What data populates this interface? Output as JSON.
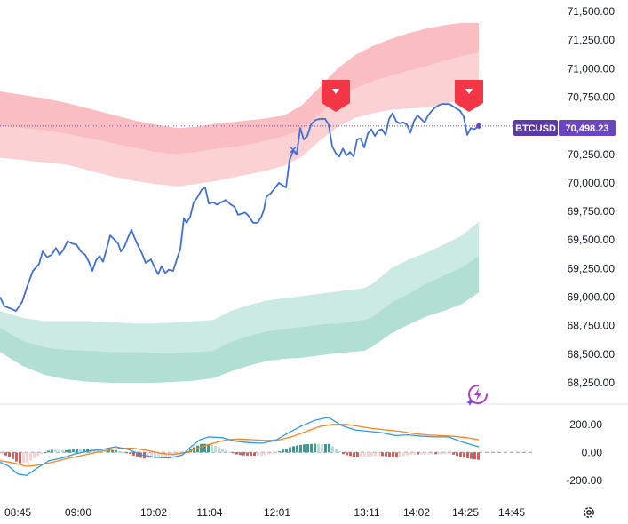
{
  "chart_data": {
    "type": "line",
    "symbol": "BTCUSD",
    "last_price": "70,498.23",
    "price_ticks": [
      "71,500.00",
      "71,250.00",
      "71,000.00",
      "70,750.00",
      "70,500.00",
      "70,250.00",
      "70,000.00",
      "69,750.00",
      "69,500.00",
      "69,250.00",
      "69,000.00",
      "68,750.00",
      "68,500.00",
      "68,250.00"
    ],
    "time_ticks": [
      "08:45",
      "09:00",
      "10:02",
      "11:04",
      "12:01",
      "13:11",
      "14:02",
      "14:25",
      "14:45"
    ],
    "ylim": [
      68150,
      71550
    ],
    "price": [
      [
        0,
        69000
      ],
      [
        5,
        68920
      ],
      [
        12,
        68900
      ],
      [
        18,
        68880
      ],
      [
        25,
        68960
      ],
      [
        30,
        69080
      ],
      [
        37,
        69230
      ],
      [
        44,
        69290
      ],
      [
        48,
        69400
      ],
      [
        53,
        69350
      ],
      [
        58,
        69370
      ],
      [
        63,
        69430
      ],
      [
        67,
        69370
      ],
      [
        71,
        69410
      ],
      [
        76,
        69490
      ],
      [
        81,
        69470
      ],
      [
        86,
        69460
      ],
      [
        91,
        69400
      ],
      [
        96,
        69370
      ],
      [
        100,
        69310
      ],
      [
        104,
        69230
      ],
      [
        108,
        69320
      ],
      [
        112,
        69360
      ],
      [
        116,
        69310
      ],
      [
        120,
        69420
      ],
      [
        124,
        69540
      ],
      [
        128,
        69510
      ],
      [
        133,
        69470
      ],
      [
        136,
        69400
      ],
      [
        140,
        69440
      ],
      [
        144,
        69520
      ],
      [
        148,
        69590
      ],
      [
        152,
        69510
      ],
      [
        156,
        69440
      ],
      [
        160,
        69380
      ],
      [
        164,
        69300
      ],
      [
        170,
        69330
      ],
      [
        174,
        69260
      ],
      [
        178,
        69200
      ],
      [
        182,
        69270
      ],
      [
        186,
        69210
      ],
      [
        190,
        69240
      ],
      [
        195,
        69230
      ],
      [
        199,
        69330
      ],
      [
        203,
        69420
      ],
      [
        207,
        69690
      ],
      [
        210,
        69650
      ],
      [
        214,
        69700
      ],
      [
        218,
        69830
      ],
      [
        222,
        69870
      ],
      [
        227,
        69940
      ],
      [
        231,
        69960
      ],
      [
        235,
        69820
      ],
      [
        240,
        69830
      ],
      [
        244,
        69810
      ],
      [
        249,
        69830
      ],
      [
        254,
        69850
      ],
      [
        260,
        69810
      ],
      [
        264,
        69790
      ],
      [
        268,
        69720
      ],
      [
        272,
        69730
      ],
      [
        276,
        69740
      ],
      [
        280,
        69710
      ],
      [
        285,
        69650
      ],
      [
        290,
        69650
      ],
      [
        294,
        69700
      ],
      [
        297,
        69760
      ],
      [
        300,
        69880
      ],
      [
        305,
        69910
      ],
      [
        310,
        69960
      ],
      [
        314,
        70000
      ],
      [
        318,
        69980
      ],
      [
        322,
        69960
      ],
      [
        326,
        70200
      ],
      [
        330,
        70280
      ],
      [
        334,
        70250
      ],
      [
        338,
        70480
      ],
      [
        342,
        70380
      ],
      [
        346,
        70410
      ],
      [
        350,
        70510
      ],
      [
        355,
        70550
      ],
      [
        360,
        70560
      ],
      [
        366,
        70560
      ],
      [
        370,
        70510
      ],
      [
        374,
        70320
      ],
      [
        378,
        70260
      ],
      [
        382,
        70230
      ],
      [
        386,
        70300
      ],
      [
        390,
        70240
      ],
      [
        394,
        70270
      ],
      [
        398,
        70230
      ],
      [
        402,
        70380
      ],
      [
        406,
        70390
      ],
      [
        410,
        70310
      ],
      [
        414,
        70430
      ],
      [
        418,
        70470
      ],
      [
        422,
        70410
      ],
      [
        426,
        70460
      ],
      [
        430,
        70470
      ],
      [
        434,
        70420
      ],
      [
        438,
        70560
      ],
      [
        442,
        70610
      ],
      [
        446,
        70540
      ],
      [
        450,
        70520
      ],
      [
        454,
        70530
      ],
      [
        458,
        70510
      ],
      [
        462,
        70440
      ],
      [
        466,
        70540
      ],
      [
        470,
        70590
      ],
      [
        474,
        70560
      ],
      [
        478,
        70530
      ],
      [
        482,
        70590
      ],
      [
        486,
        70630
      ],
      [
        490,
        70660
      ],
      [
        494,
        70680
      ],
      [
        498,
        70690
      ],
      [
        502,
        70690
      ],
      [
        506,
        70690
      ],
      [
        510,
        70670
      ],
      [
        514,
        70650
      ],
      [
        518,
        70630
      ],
      [
        522,
        70580
      ],
      [
        526,
        70420
      ],
      [
        530,
        70480
      ],
      [
        534,
        70470
      ],
      [
        539,
        70498
      ]
    ],
    "upper_band": {
      "outer": [
        [
          0,
          70800
        ],
        [
          25,
          70770
        ],
        [
          50,
          70740
        ],
        [
          75,
          70700
        ],
        [
          100,
          70650
        ],
        [
          125,
          70600
        ],
        [
          150,
          70550
        ],
        [
          175,
          70510
        ],
        [
          200,
          70480
        ],
        [
          220,
          70490
        ],
        [
          245,
          70520
        ],
        [
          270,
          70540
        ],
        [
          295,
          70560
        ],
        [
          320,
          70590
        ],
        [
          340,
          70680
        ],
        [
          360,
          70840
        ],
        [
          380,
          71000
        ],
        [
          400,
          71120
        ],
        [
          420,
          71200
        ],
        [
          440,
          71260
        ],
        [
          460,
          71310
        ],
        [
          480,
          71350
        ],
        [
          500,
          71380
        ],
        [
          520,
          71400
        ],
        [
          539,
          71400
        ]
      ],
      "middle": [
        [
          0,
          70500
        ],
        [
          25,
          70480
        ],
        [
          50,
          70460
        ],
        [
          75,
          70430
        ],
        [
          100,
          70390
        ],
        [
          125,
          70350
        ],
        [
          150,
          70310
        ],
        [
          175,
          70270
        ],
        [
          200,
          70250
        ],
        [
          220,
          70270
        ],
        [
          245,
          70300
        ],
        [
          270,
          70320
        ],
        [
          295,
          70360
        ],
        [
          320,
          70410
        ],
        [
          340,
          70470
        ],
        [
          360,
          70600
        ],
        [
          380,
          70740
        ],
        [
          400,
          70830
        ],
        [
          420,
          70890
        ],
        [
          440,
          70940
        ],
        [
          460,
          70980
        ],
        [
          480,
          71020
        ],
        [
          500,
          71070
        ],
        [
          520,
          71110
        ],
        [
          539,
          71140
        ]
      ],
      "inner": [
        [
          0,
          70220
        ],
        [
          25,
          70200
        ],
        [
          50,
          70180
        ],
        [
          75,
          70160
        ],
        [
          100,
          70110
        ],
        [
          125,
          70060
        ],
        [
          150,
          70020
        ],
        [
          175,
          69990
        ],
        [
          200,
          69970
        ],
        [
          220,
          69990
        ],
        [
          245,
          70020
        ],
        [
          270,
          70060
        ],
        [
          295,
          70100
        ],
        [
          320,
          70150
        ],
        [
          340,
          70230
        ],
        [
          360,
          70370
        ],
        [
          380,
          70490
        ],
        [
          400,
          70570
        ],
        [
          420,
          70610
        ],
        [
          440,
          70640
        ],
        [
          460,
          70650
        ],
        [
          480,
          70660
        ],
        [
          500,
          70690
        ],
        [
          520,
          70730
        ],
        [
          539,
          70760
        ]
      ]
    },
    "lower_band": {
      "inner": [
        [
          0,
          68880
        ],
        [
          25,
          68820
        ],
        [
          50,
          68790
        ],
        [
          75,
          68790
        ],
        [
          100,
          68790
        ],
        [
          125,
          68780
        ],
        [
          150,
          68770
        ],
        [
          175,
          68770
        ],
        [
          200,
          68780
        ],
        [
          220,
          68790
        ],
        [
          240,
          68800
        ],
        [
          260,
          68880
        ],
        [
          280,
          68930
        ],
        [
          300,
          68970
        ],
        [
          320,
          68990
        ],
        [
          340,
          69010
        ],
        [
          360,
          69030
        ],
        [
          380,
          69050
        ],
        [
          410,
          69080
        ],
        [
          420,
          69120
        ],
        [
          440,
          69250
        ],
        [
          460,
          69330
        ],
        [
          480,
          69390
        ],
        [
          500,
          69460
        ],
        [
          520,
          69540
        ],
        [
          539,
          69660
        ]
      ],
      "middle": [
        [
          0,
          68730
        ],
        [
          25,
          68620
        ],
        [
          50,
          68560
        ],
        [
          75,
          68540
        ],
        [
          100,
          68530
        ],
        [
          125,
          68520
        ],
        [
          150,
          68520
        ],
        [
          175,
          68510
        ],
        [
          200,
          68510
        ],
        [
          220,
          68520
        ],
        [
          240,
          68530
        ],
        [
          260,
          68610
        ],
        [
          280,
          68660
        ],
        [
          300,
          68700
        ],
        [
          320,
          68720
        ],
        [
          340,
          68740
        ],
        [
          360,
          68760
        ],
        [
          380,
          68770
        ],
        [
          410,
          68800
        ],
        [
          420,
          68830
        ],
        [
          440,
          68950
        ],
        [
          460,
          69030
        ],
        [
          480,
          69120
        ],
        [
          500,
          69190
        ],
        [
          520,
          69260
        ],
        [
          539,
          69360
        ]
      ],
      "outer": [
        [
          0,
          68520
        ],
        [
          25,
          68400
        ],
        [
          50,
          68320
        ],
        [
          75,
          68280
        ],
        [
          100,
          68260
        ],
        [
          125,
          68250
        ],
        [
          150,
          68250
        ],
        [
          175,
          68250
        ],
        [
          200,
          68260
        ],
        [
          220,
          68270
        ],
        [
          240,
          68290
        ],
        [
          260,
          68350
        ],
        [
          280,
          68400
        ],
        [
          300,
          68440
        ],
        [
          320,
          68460
        ],
        [
          340,
          68470
        ],
        [
          360,
          68490
        ],
        [
          380,
          68510
        ],
        [
          410,
          68530
        ],
        [
          420,
          68570
        ],
        [
          440,
          68680
        ],
        [
          460,
          68760
        ],
        [
          480,
          68830
        ],
        [
          500,
          68880
        ],
        [
          520,
          68940
        ],
        [
          539,
          69040
        ]
      ]
    },
    "signals": [
      {
        "x": 378,
        "type": "sell"
      },
      {
        "x": 528,
        "type": "sell"
      }
    ],
    "cross_marker": {
      "x": 330
    },
    "macd": {
      "ticks": [
        "200.00",
        "0.00",
        "-200.00"
      ],
      "ylim": [
        -290,
        300
      ],
      "macd_line": [
        [
          0,
          -70
        ],
        [
          10,
          -100
        ],
        [
          20,
          -155
        ],
        [
          30,
          -165
        ],
        [
          40,
          -120
        ],
        [
          55,
          -60
        ],
        [
          70,
          -40
        ],
        [
          85,
          -10
        ],
        [
          100,
          10
        ],
        [
          115,
          20
        ],
        [
          130,
          40
        ],
        [
          145,
          20
        ],
        [
          160,
          -20
        ],
        [
          175,
          -35
        ],
        [
          190,
          -40
        ],
        [
          205,
          -20
        ],
        [
          215,
          40
        ],
        [
          225,
          90
        ],
        [
          235,
          110
        ],
        [
          250,
          105
        ],
        [
          265,
          80
        ],
        [
          280,
          70
        ],
        [
          295,
          65
        ],
        [
          310,
          85
        ],
        [
          325,
          140
        ],
        [
          340,
          190
        ],
        [
          355,
          230
        ],
        [
          370,
          250
        ],
        [
          385,
          190
        ],
        [
          400,
          160
        ],
        [
          415,
          150
        ],
        [
          430,
          140
        ],
        [
          445,
          120
        ],
        [
          460,
          125
        ],
        [
          475,
          115
        ],
        [
          490,
          110
        ],
        [
          505,
          110
        ],
        [
          520,
          75
        ],
        [
          539,
          40
        ]
      ],
      "signal_line": [
        [
          0,
          -60
        ],
        [
          15,
          -75
        ],
        [
          30,
          -100
        ],
        [
          45,
          -90
        ],
        [
          60,
          -70
        ],
        [
          75,
          -45
        ],
        [
          90,
          -25
        ],
        [
          105,
          -5
        ],
        [
          120,
          15
        ],
        [
          135,
          30
        ],
        [
          150,
          30
        ],
        [
          165,
          15
        ],
        [
          180,
          -5
        ],
        [
          195,
          -15
        ],
        [
          210,
          0
        ],
        [
          225,
          35
        ],
        [
          240,
          65
        ],
        [
          255,
          90
        ],
        [
          270,
          95
        ],
        [
          285,
          90
        ],
        [
          300,
          85
        ],
        [
          315,
          90
        ],
        [
          330,
          115
        ],
        [
          345,
          150
        ],
        [
          360,
          185
        ],
        [
          375,
          200
        ],
        [
          390,
          200
        ],
        [
          405,
          185
        ],
        [
          420,
          170
        ],
        [
          435,
          160
        ],
        [
          450,
          150
        ],
        [
          465,
          135
        ],
        [
          480,
          125
        ],
        [
          495,
          120
        ],
        [
          510,
          115
        ],
        [
          525,
          105
        ],
        [
          539,
          90
        ]
      ]
    }
  }
}
